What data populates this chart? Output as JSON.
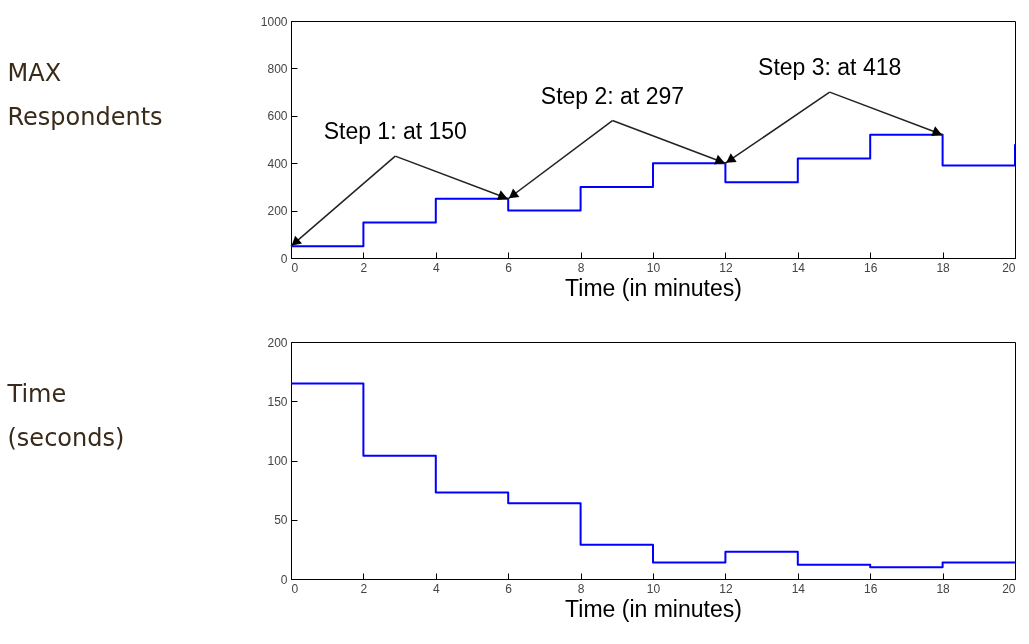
{
  "chart_data": [
    {
      "type": "step",
      "x": [
        0,
        2,
        4,
        6,
        8,
        10,
        12,
        14,
        16,
        18,
        20
      ],
      "xlabel": "Time (in minutes)",
      "ylabel": "MAX Respondents",
      "xlim": [
        0,
        20
      ],
      "xticks": [
        0,
        2,
        4,
        6,
        8,
        10,
        12,
        14,
        16,
        18,
        20
      ],
      "ylim": [
        0,
        1000
      ],
      "yticks": [
        0,
        200,
        400,
        600,
        800,
        1000
      ],
      "series": [
        {
          "color": "#0000ff",
          "values": [
            50,
            150,
            250,
            200,
            300,
            400,
            320,
            420,
            520,
            390,
            480
          ]
        }
      ],
      "annotations": [
        {
          "text": "Step 1: at 150",
          "x": 6,
          "y": 250
        },
        {
          "text": "Step 2: at 297",
          "x": 12,
          "y": 400
        },
        {
          "text": "Step 3: at 418",
          "x": 18,
          "y": 520
        }
      ]
    },
    {
      "type": "step",
      "x": [
        0,
        2,
        4,
        6,
        8,
        10,
        12,
        14,
        16,
        18,
        20
      ],
      "xlabel": "Time (in minutes)",
      "ylabel": "Time (seconds)",
      "xlim": [
        0,
        20
      ],
      "xticks": [
        0,
        2,
        4,
        6,
        8,
        10,
        12,
        14,
        16,
        18,
        20
      ],
      "ylim": [
        0,
        200
      ],
      "yticks": [
        0,
        50,
        100,
        150,
        200
      ],
      "series": [
        {
          "color": "#0000ff",
          "values": [
            165,
            104,
            73,
            64,
            29,
            14,
            23,
            12,
            10,
            14,
            14
          ]
        }
      ]
    }
  ]
}
